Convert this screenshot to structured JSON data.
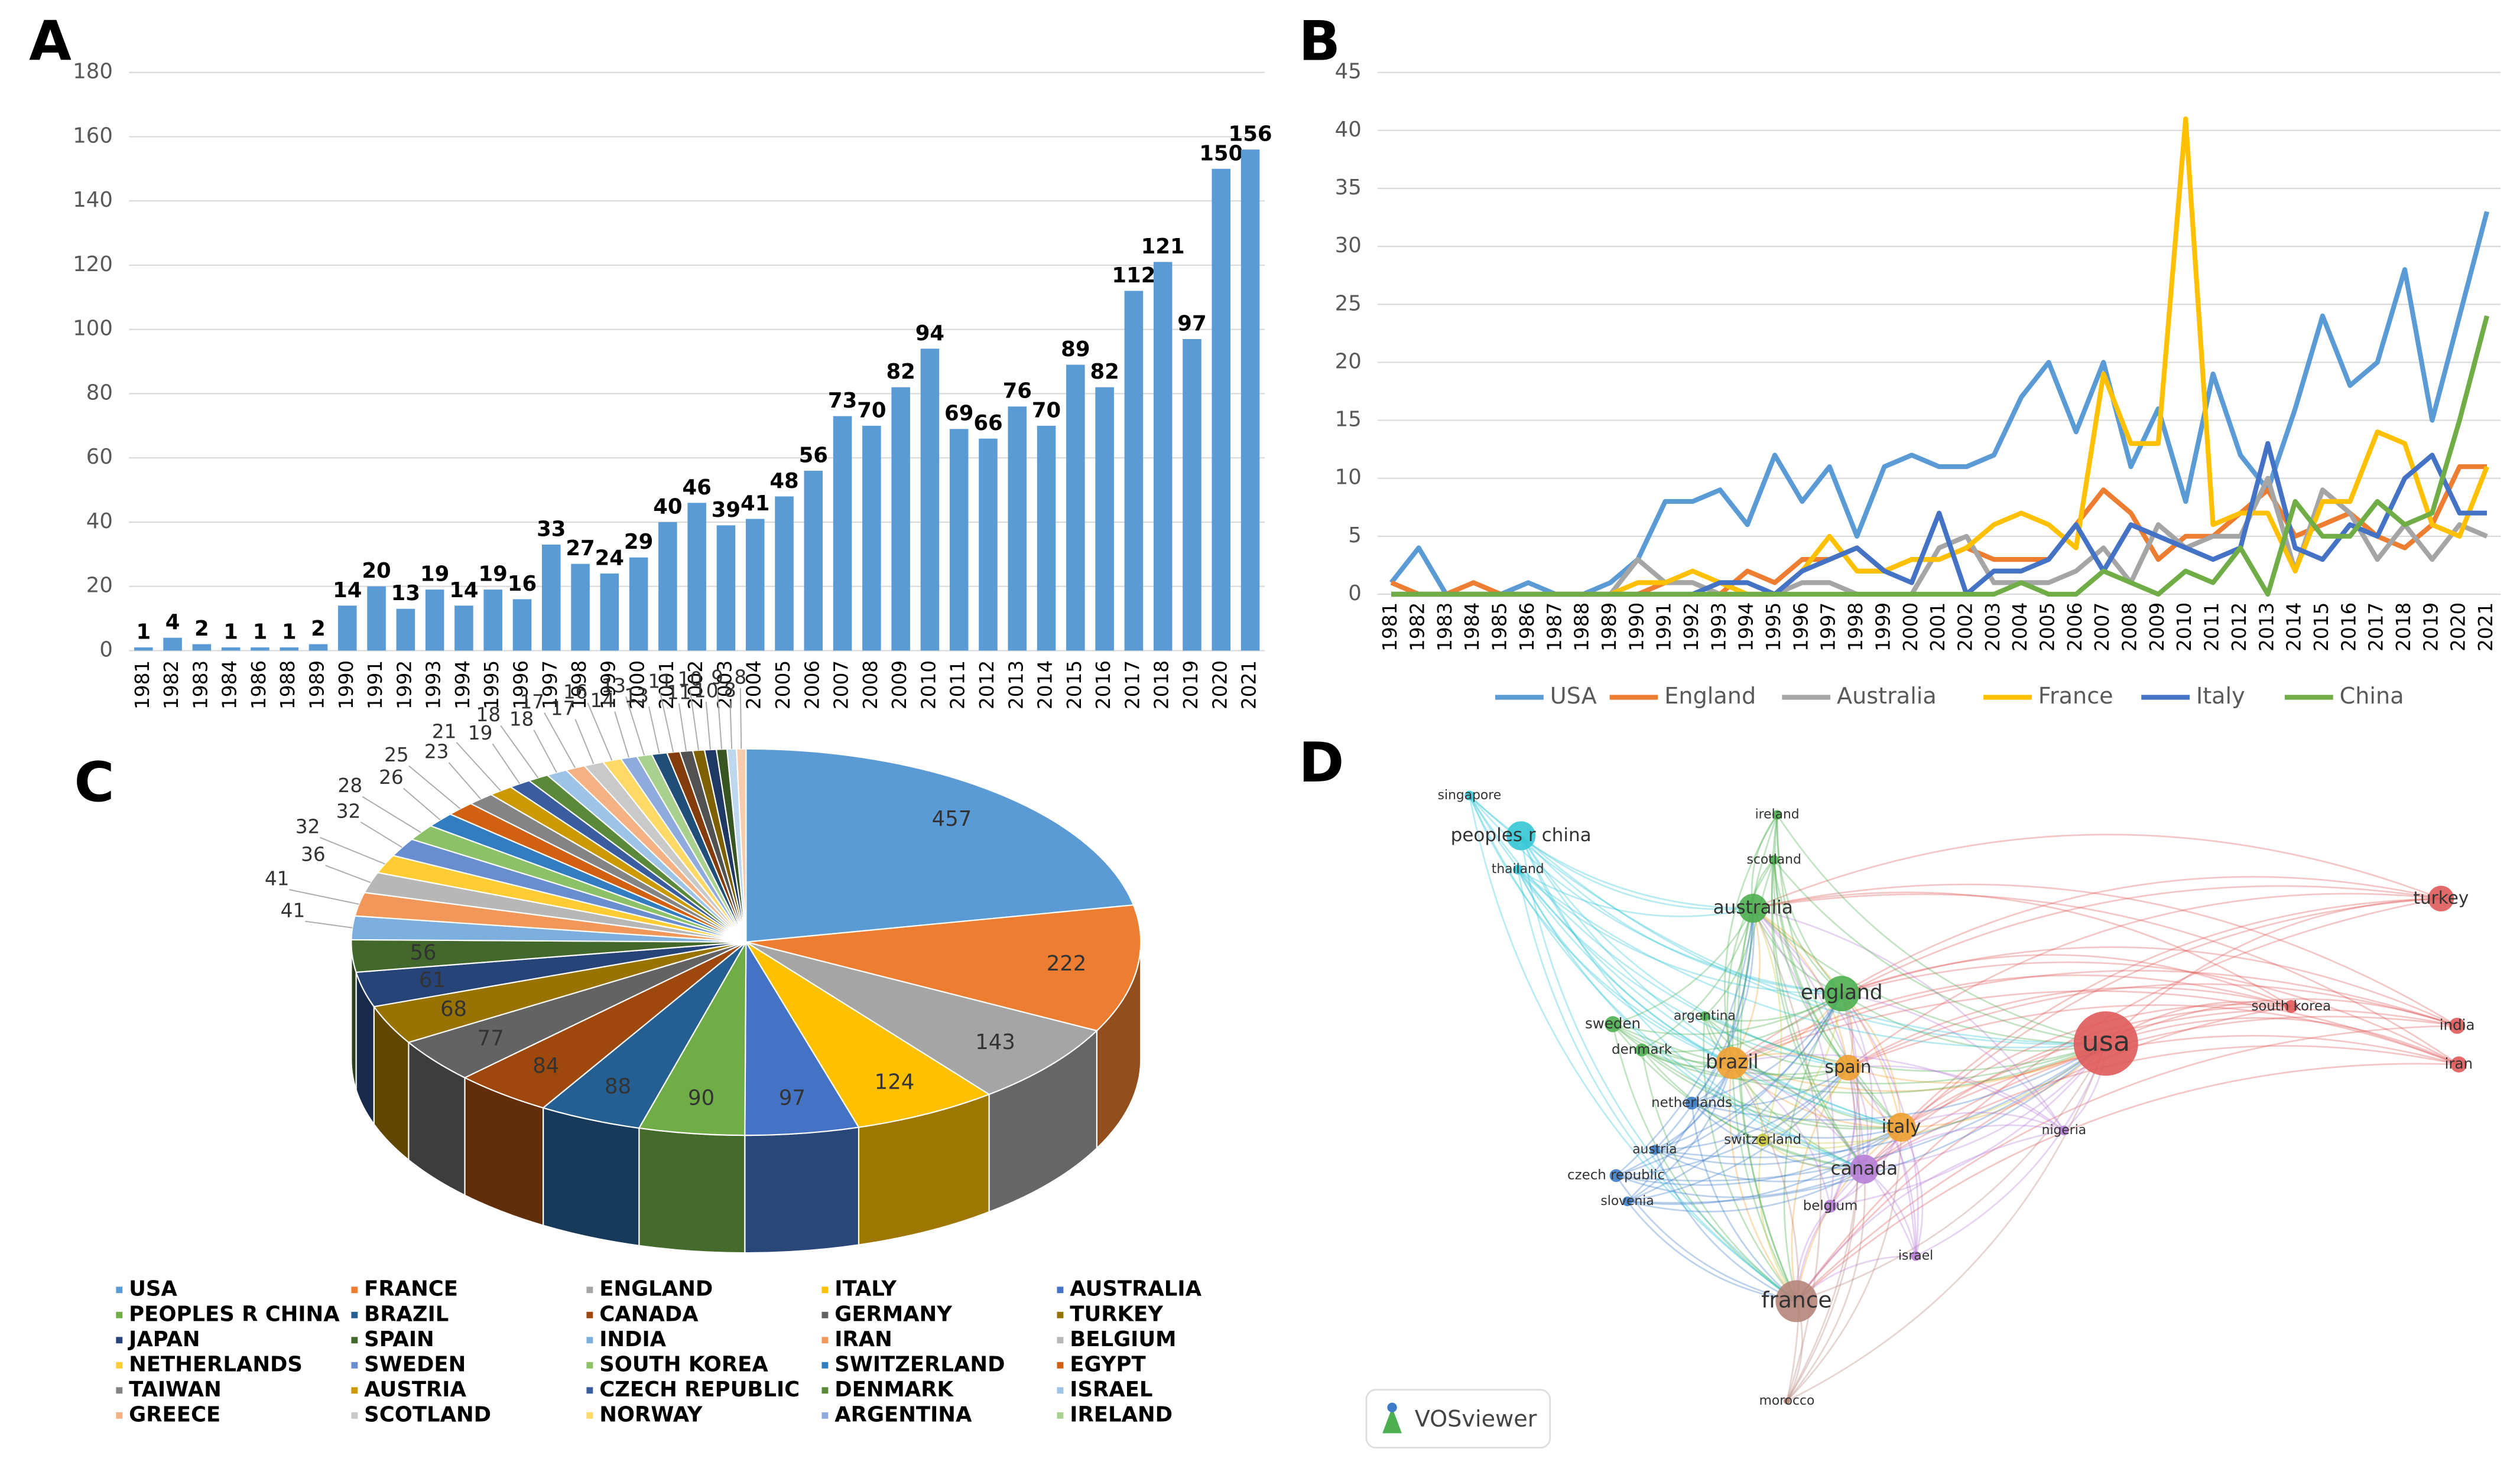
{
  "chart_data": [
    {
      "type": "bar",
      "panel": "A",
      "categories": [
        "1981",
        "1982",
        "1983",
        "1984",
        "1986",
        "1988",
        "1989",
        "1990",
        "1991",
        "1992",
        "1993",
        "1994",
        "1995",
        "1996",
        "1997",
        "1998",
        "1999",
        "2000",
        "2001",
        "2002",
        "2003",
        "2004",
        "2005",
        "2006",
        "2007",
        "2008",
        "2009",
        "2010",
        "2011",
        "2012",
        "2013",
        "2014",
        "2015",
        "2016",
        "2017",
        "2018",
        "2019",
        "2020",
        "2021"
      ],
      "values": [
        1,
        4,
        2,
        1,
        1,
        1,
        2,
        14,
        20,
        13,
        19,
        14,
        19,
        16,
        33,
        27,
        24,
        29,
        40,
        46,
        39,
        41,
        48,
        56,
        73,
        70,
        82,
        94,
        69,
        66,
        76,
        70,
        89,
        82,
        112,
        121,
        97,
        150,
        156
      ],
      "color": "#5b9bd5",
      "ylim": [
        0,
        180
      ],
      "yticks": [
        0,
        20,
        40,
        60,
        80,
        100,
        120,
        140,
        160,
        180
      ],
      "grid": true
    },
    {
      "type": "line",
      "panel": "B",
      "categories": [
        "1981",
        "1982",
        "1983",
        "1984",
        "1985",
        "1986",
        "1987",
        "1988",
        "1989",
        "1990",
        "1991",
        "1992",
        "1993",
        "1994",
        "1995",
        "1996",
        "1997",
        "1998",
        "1999",
        "2000",
        "2001",
        "2002",
        "2003",
        "2004",
        "2005",
        "2006",
        "2007",
        "2008",
        "2009",
        "2010",
        "2011",
        "2012",
        "2013",
        "2014",
        "2015",
        "2016",
        "2017",
        "2018",
        "2019",
        "2020",
        "2021"
      ],
      "series": [
        {
          "name": "USA",
          "color": "#5b9bd5",
          "values": [
            1,
            4,
            0,
            0,
            0,
            1,
            0,
            0,
            1,
            3,
            8,
            8,
            9,
            6,
            12,
            8,
            11,
            5,
            11,
            12,
            11,
            11,
            12,
            17,
            20,
            14,
            20,
            11,
            16,
            8,
            19,
            12,
            9,
            16,
            24,
            18,
            20,
            28,
            15,
            24,
            33
          ]
        },
        {
          "name": "England",
          "color": "#ed7d31",
          "values": [
            1,
            0,
            0,
            1,
            0,
            0,
            0,
            0,
            0,
            0,
            1,
            1,
            0,
            2,
            1,
            3,
            3,
            4,
            2,
            3,
            3,
            4,
            3,
            3,
            3,
            6,
            9,
            7,
            3,
            5,
            5,
            7,
            9,
            5,
            6,
            7,
            5,
            4,
            6,
            11,
            11
          ]
        },
        {
          "name": "Australia",
          "color": "#a5a5a5",
          "values": [
            0,
            0,
            0,
            0,
            0,
            0,
            0,
            0,
            0,
            3,
            1,
            1,
            0,
            0,
            0,
            1,
            1,
            0,
            0,
            0,
            4,
            5,
            1,
            1,
            1,
            2,
            4,
            1,
            6,
            4,
            5,
            5,
            10,
            2,
            9,
            7,
            3,
            6,
            3,
            6,
            5
          ]
        },
        {
          "name": "France",
          "color": "#ffc000",
          "values": [
            0,
            0,
            0,
            0,
            0,
            0,
            0,
            0,
            0,
            1,
            1,
            2,
            1,
            0,
            0,
            2,
            5,
            2,
            2,
            3,
            3,
            4,
            6,
            7,
            6,
            4,
            19,
            13,
            13,
            41,
            6,
            7,
            7,
            2,
            8,
            8,
            14,
            13,
            6,
            5,
            11
          ]
        },
        {
          "name": "Italy",
          "color": "#4472c4",
          "values": [
            0,
            0,
            0,
            0,
            0,
            0,
            0,
            0,
            0,
            0,
            0,
            0,
            1,
            1,
            0,
            2,
            3,
            4,
            2,
            1,
            7,
            0,
            2,
            2,
            3,
            6,
            2,
            6,
            5,
            4,
            3,
            4,
            13,
            4,
            3,
            6,
            5,
            10,
            12,
            7,
            7
          ]
        },
        {
          "name": "China",
          "color": "#70ad47",
          "values": [
            0,
            0,
            0,
            0,
            0,
            0,
            0,
            0,
            0,
            0,
            0,
            0,
            0,
            0,
            0,
            0,
            0,
            0,
            0,
            0,
            0,
            0,
            0,
            1,
            0,
            0,
            2,
            1,
            0,
            2,
            1,
            4,
            0,
            8,
            5,
            5,
            8,
            6,
            7,
            15,
            24
          ]
        }
      ],
      "ylim": [
        0,
        45
      ],
      "yticks": [
        0,
        5,
        10,
        15,
        20,
        25,
        30,
        35,
        40,
        45
      ],
      "grid": true,
      "legend": "bottom"
    },
    {
      "type": "pie",
      "panel": "C",
      "categories": [
        "USA",
        "FRANCE",
        "ENGLAND",
        "ITALY",
        "AUSTRALIA",
        "PEOPLES R CHINA",
        "BRAZIL",
        "CANADA",
        "GERMANY",
        "TURKEY",
        "JAPAN",
        "SPAIN",
        "INDIA",
        "IRAN",
        "BELGIUM",
        "NETHERLANDS",
        "SWEDEN",
        "SOUTH KOREA",
        "SWITZERLAND",
        "EGYPT",
        "TAIWAN",
        "AUSTRIA",
        "CZECH REPUBLIC",
        "DENMARK",
        "ISRAEL",
        "GREECE",
        "SCOTLAND",
        "NORWAY",
        "ARGENTINA",
        "IRELAND",
        null,
        null,
        null,
        null,
        null,
        null,
        null,
        null
      ],
      "values": [
        457,
        222,
        143,
        124,
        97,
        90,
        88,
        84,
        77,
        68,
        61,
        56,
        41,
        41,
        36,
        32,
        32,
        28,
        26,
        25,
        23,
        21,
        19,
        18,
        18,
        17,
        17,
        16,
        14,
        13,
        13,
        11,
        11,
        10,
        10,
        9,
        8,
        8
      ],
      "colors": [
        "#5b9bd5",
        "#ed7d31",
        "#a5a5a5",
        "#ffc000",
        "#4472c4",
        "#70ad47",
        "#255e91",
        "#9e480e",
        "#636363",
        "#997300",
        "#264478",
        "#43682b",
        "#7cafdd",
        "#f1975a",
        "#b7b7b7",
        "#ffcd33",
        "#698ed0",
        "#8cc168",
        "#327dc2",
        "#d26012",
        "#848484",
        "#cc9a00",
        "#3a5da0",
        "#5a8a39",
        "#9dc3e6",
        "#f4b183",
        "#c9c9c9",
        "#ffd966",
        "#8faadc",
        "#a9d18e",
        "#1f4e79",
        "#843c0c",
        "#525252",
        "#7f6000",
        "#203864",
        "#375623",
        "#bdd7ee",
        "#f8cbad"
      ],
      "legend": "bottom"
    },
    {
      "type": "network",
      "panel": "D",
      "nodes": [
        {
          "label": "usa",
          "color": "#e05a5a"
        },
        {
          "label": "france",
          "color": "#b5857a"
        },
        {
          "label": "england",
          "color": "#4caf50"
        },
        {
          "label": "australia",
          "color": "#4caf50"
        },
        {
          "label": "italy",
          "color": "#f0a030"
        },
        {
          "label": "brazil",
          "color": "#f0a030"
        },
        {
          "label": "spain",
          "color": "#f0a030"
        },
        {
          "label": "canada",
          "color": "#b77ed6"
        },
        {
          "label": "peoples r china",
          "color": "#35c6d6"
        },
        {
          "label": "turkey",
          "color": "#e05a5a"
        },
        {
          "label": "south korea",
          "color": "#e05a5a"
        },
        {
          "label": "india",
          "color": "#e05a5a"
        },
        {
          "label": "iran",
          "color": "#e05a5a"
        },
        {
          "label": "sweden",
          "color": "#4caf50"
        },
        {
          "label": "denmark",
          "color": "#4caf50"
        },
        {
          "label": "argentina",
          "color": "#4caf50"
        },
        {
          "label": "netherlands",
          "color": "#3d7cc9"
        },
        {
          "label": "switzerland",
          "color": "#c8c83c"
        },
        {
          "label": "austria",
          "color": "#3d7cc9"
        },
        {
          "label": "czech republic",
          "color": "#3d7cc9"
        },
        {
          "label": "slovenia",
          "color": "#3d7cc9"
        },
        {
          "label": "belgium",
          "color": "#b77ed6"
        },
        {
          "label": "israel",
          "color": "#b77ed6"
        },
        {
          "label": "nigeria",
          "color": "#b77ed6"
        },
        {
          "label": "morocco",
          "color": "#b5857a"
        },
        {
          "label": "singapore",
          "color": "#35c6d6"
        },
        {
          "label": "thailand",
          "color": "#35c6d6"
        },
        {
          "label": "ireland",
          "color": "#4caf50"
        },
        {
          "label": "scotland",
          "color": "#4caf50"
        }
      ],
      "logo": "VOSviewer"
    }
  ]
}
